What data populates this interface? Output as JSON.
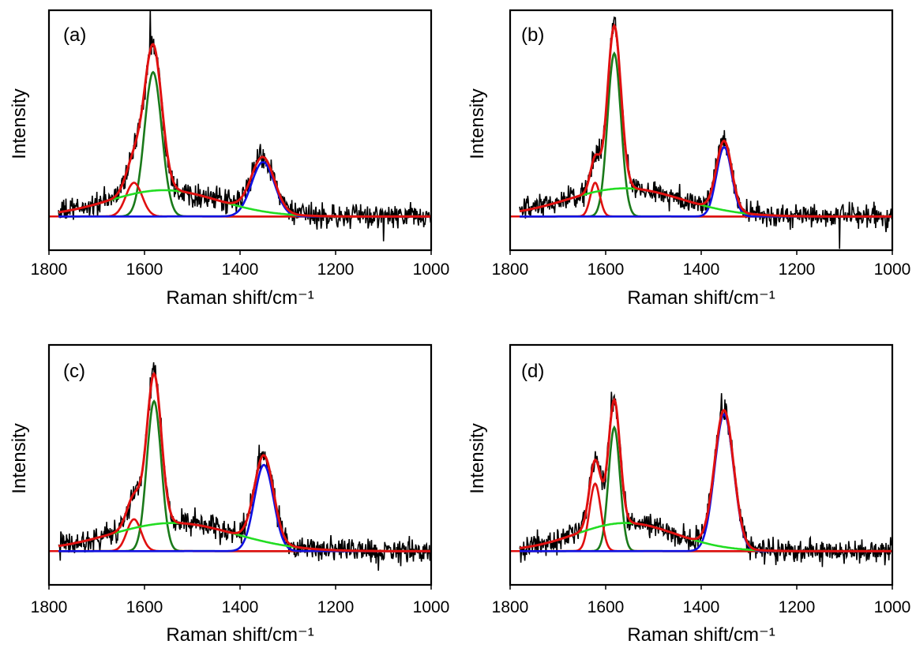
{
  "chart_data": [
    {
      "type": "line",
      "panel_label": "(a)",
      "xlabel": "Raman shift/cm⁻¹",
      "ylabel": "Intensity",
      "xlim": [
        1800,
        1000
      ],
      "x_reversed": true,
      "xticks": [
        "1800",
        "1600",
        "1400",
        "1200",
        "1000"
      ],
      "ylim": [
        -0.18,
        1.1
      ],
      "baseline": 0,
      "raw_data_noise": 0.04,
      "components": [
        {
          "color": "#1a7a1a",
          "center": 1582,
          "width": 18,
          "amp": 0.77,
          "shape": "gauss"
        },
        {
          "color": "#e01010",
          "center": 1622,
          "width": 17,
          "amp": 0.18,
          "shape": "gauss"
        },
        {
          "color": "#1010e0",
          "center": 1352,
          "width": 24,
          "amp": 0.29,
          "shape": "gauss"
        },
        {
          "color": "#22dd22",
          "center": 1560,
          "width": 115,
          "amp": 0.14,
          "shape": "gauss"
        }
      ],
      "spikes": [
        {
          "x": 1588,
          "y": 0.22
        },
        {
          "x": 1357,
          "y": 0.08
        },
        {
          "x": 1100,
          "y": -0.15
        }
      ]
    },
    {
      "type": "line",
      "panel_label": "(b)",
      "xlabel": "Raman shift/cm⁻¹",
      "ylabel": "Intensity",
      "xlim": [
        1800,
        1000
      ],
      "x_reversed": true,
      "xticks": [
        "1800",
        "1600",
        "1400",
        "1200",
        "1000"
      ],
      "ylim": [
        -0.18,
        1.1
      ],
      "baseline": 0,
      "raw_data_noise": 0.04,
      "components": [
        {
          "color": "#1a7a1a",
          "center": 1582,
          "width": 14,
          "amp": 0.87,
          "shape": "gauss"
        },
        {
          "color": "#e01010",
          "center": 1622,
          "width": 10,
          "amp": 0.18,
          "shape": "gauss"
        },
        {
          "color": "#1010e0",
          "center": 1352,
          "width": 16,
          "amp": 0.37,
          "shape": "gauss"
        },
        {
          "color": "#22dd22",
          "center": 1560,
          "width": 120,
          "amp": 0.15,
          "shape": "gauss"
        }
      ],
      "spikes": [
        {
          "x": 1583,
          "y": 0.06
        },
        {
          "x": 1352,
          "y": 0.05
        },
        {
          "x": 1110,
          "y": -0.15
        }
      ]
    },
    {
      "type": "line",
      "panel_label": "(c)",
      "xlabel": "Raman shift/cm⁻¹",
      "ylabel": "Intensity",
      "xlim": [
        1800,
        1000
      ],
      "x_reversed": true,
      "xticks": [
        "1800",
        "1600",
        "1400",
        "1200",
        "1000"
      ],
      "ylim": [
        -0.18,
        1.1
      ],
      "baseline": 0,
      "raw_data_noise": 0.04,
      "components": [
        {
          "color": "#1a7a1a",
          "center": 1580,
          "width": 15,
          "amp": 0.8,
          "shape": "gauss"
        },
        {
          "color": "#e01010",
          "center": 1622,
          "width": 15,
          "amp": 0.17,
          "shape": "gauss"
        },
        {
          "color": "#1010e0",
          "center": 1350,
          "width": 20,
          "amp": 0.46,
          "shape": "gauss"
        },
        {
          "color": "#22dd22",
          "center": 1540,
          "width": 130,
          "amp": 0.15,
          "shape": "gauss"
        }
      ],
      "spikes": [
        {
          "x": 1588,
          "y": 0.07
        },
        {
          "x": 1360,
          "y": 0.08
        },
        {
          "x": 1110,
          "y": -0.15
        }
      ]
    },
    {
      "type": "line",
      "panel_label": "(d)",
      "xlabel": "Raman shift/cm⁻¹",
      "ylabel": "Intensity",
      "xlim": [
        1800,
        1000
      ],
      "x_reversed": true,
      "xticks": [
        "1800",
        "1600",
        "1400",
        "1200",
        "1000"
      ],
      "ylim": [
        -0.18,
        1.1
      ],
      "baseline": 0,
      "raw_data_noise": 0.04,
      "components": [
        {
          "color": "#1a7a1a",
          "center": 1582,
          "width": 12,
          "amp": 0.66,
          "shape": "gauss"
        },
        {
          "color": "#e01010",
          "center": 1622,
          "width": 12,
          "amp": 0.36,
          "shape": "gauss"
        },
        {
          "color": "#1010e0",
          "center": 1352,
          "width": 20,
          "amp": 0.73,
          "shape": "gauss"
        },
        {
          "color": "#22dd22",
          "center": 1558,
          "width": 105,
          "amp": 0.15,
          "shape": "gauss"
        }
      ],
      "spikes": [
        {
          "x": 1588,
          "y": 0.08
        },
        {
          "x": 1357,
          "y": 0.08
        }
      ]
    }
  ],
  "style": {
    "raw_color": "#000000",
    "fit_color": "#e01010",
    "baseline_color": "#e01010"
  }
}
